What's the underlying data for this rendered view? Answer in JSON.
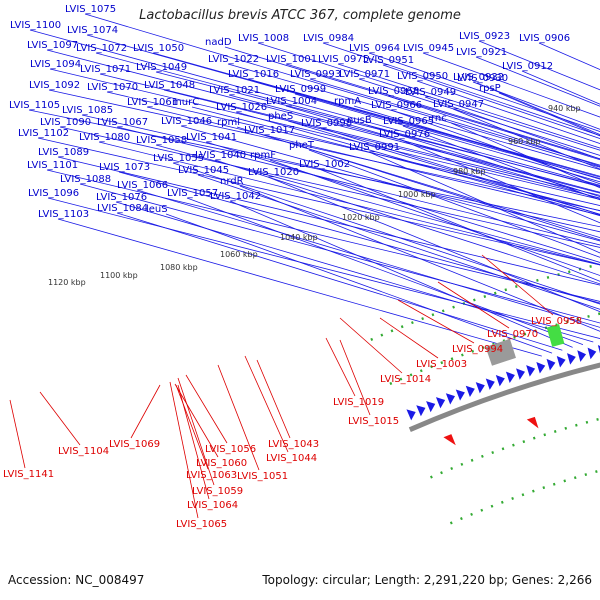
{
  "title": "Lactobacillus brevis ATCC 367, complete genome",
  "footer": {
    "accession": "Accession: NC_008497",
    "summary": "Topology: circular; Length: 2,291,220 bp; Genes: 2,266"
  },
  "colors": {
    "forward_label": "#0000cc",
    "reverse_label": "#dd0000",
    "forward_arrow": "#1a1ae6",
    "reverse_arrow": "#ee1111",
    "backbone": "#888888",
    "tick": "#22aa22"
  },
  "kbp_ticks": [
    "940 kbp",
    "960 kbp",
    "980 kbp",
    "1000 kbp",
    "1020 kbp",
    "1040 kbp",
    "1060 kbp",
    "1080 kbp",
    "1100 kbp",
    "1120 kbp"
  ],
  "forward_labels": [
    "LVIS_1075",
    "LVIS_1100",
    "LVIS_1074",
    "LVIS_1097",
    "LVIS_1072",
    "LVIS_1050",
    "nadD",
    "LVIS_1008",
    "LVIS_0984",
    "LVIS_0964",
    "LVIS_0945",
    "LVIS_0923",
    "LVIS_0906",
    "LVIS_1094",
    "LVIS_1071",
    "LVIS_1049",
    "LVIS_1022",
    "LVIS_1001",
    "LVIS_0975",
    "LVIS_0951",
    "LVIS_0921",
    "LVIS_1016",
    "LVIS_0993",
    "LVIS_0971",
    "LVIS_0950",
    "LVIS_0932",
    "LVIS_0912",
    "LVIS_1092",
    "LVIS_1070",
    "LVIS_1048",
    "LVIS_1021",
    "LVIS_0999",
    "rpmA",
    "LVIS_0968",
    "LVIS_0949",
    "LVIS_0930",
    "rpsP",
    "LVIS_1105",
    "LVIS_1061",
    "murC",
    "LVIS_1004",
    "nusB",
    "LVIS_0966",
    "LVIS_0947",
    "LVIS_1085",
    "LVIS_1026",
    "pheS",
    "LVIS_0998",
    "LVIS_0965",
    "rnc",
    "LVIS_1090",
    "LVIS_1067",
    "LVIS_1046",
    "rpml",
    "LVIS_1017",
    "LVIS_0976",
    "LVIS_1102",
    "LVIS_1080",
    "LVIS_1058",
    "LVIS_1041",
    "pheT",
    "LVIS_0991",
    "LVIS_1089",
    "rpmF",
    "LVIS_1040",
    "LVIS_1002",
    "LVIS_1101",
    "LVIS_1073",
    "LVIS_1055",
    "LVIS_1045",
    "LVIS_1020",
    "LVIS_1088",
    "LVIS_1066",
    "nrdR",
    "LVIS_1096",
    "LVIS_1076",
    "LVIS_1057",
    "LVIS_1042",
    "LVIS_1084",
    "leuS",
    "LVIS_1103"
  ],
  "reverse_labels": [
    "LVIS_0958",
    "LVIS_0970",
    "LVIS_0994",
    "LVIS_1003",
    "LVIS_1014",
    "LVIS_1019",
    "LVIS_1015",
    "LVIS_1043",
    "LVIS_1044",
    "LVIS_1069",
    "LVIS_1056",
    "LVIS_1060",
    "LVIS_1104",
    "LVIS_1051",
    "LVIS_1063",
    "LVIS_1059",
    "LVIS_1064",
    "LVIS_1065",
    "LVIS_1141"
  ]
}
